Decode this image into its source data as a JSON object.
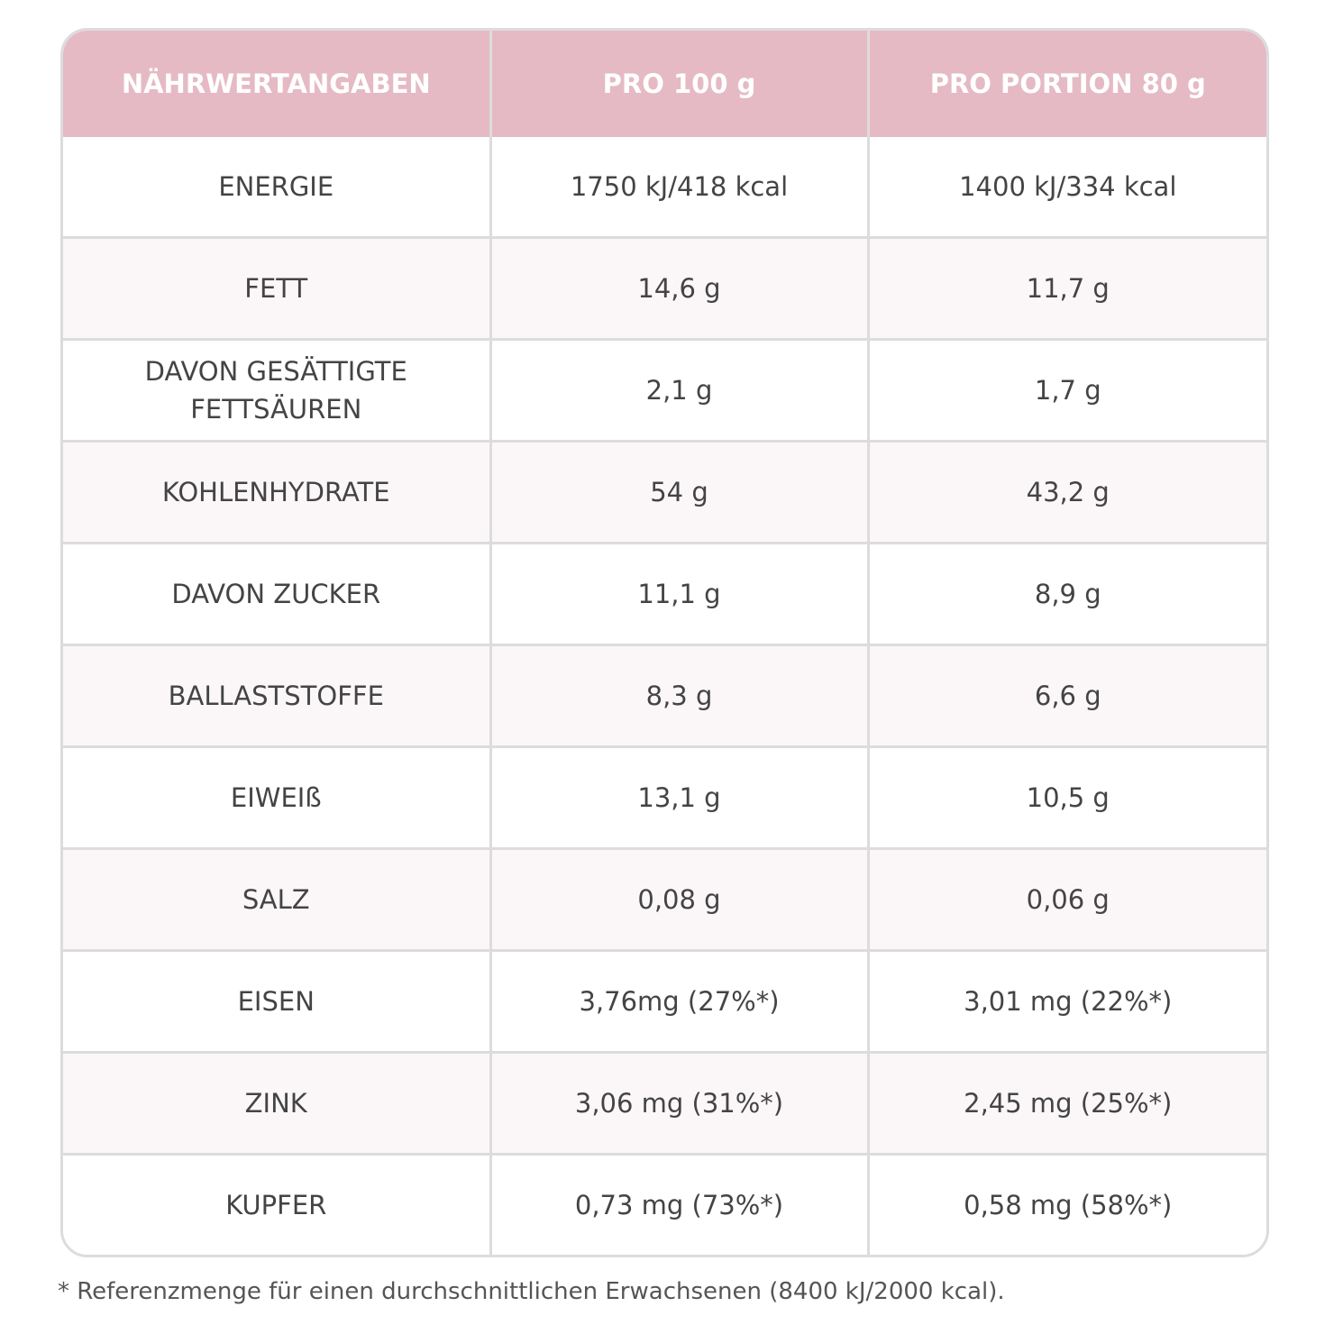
{
  "table": {
    "header": [
      "NÄHRWERTANGABEN",
      "PRO 100 g",
      "PRO PORTION 80 g"
    ],
    "rows": [
      [
        "ENERGIE",
        "1750 kJ/418 kcal",
        "1400 kJ/334 kcal"
      ],
      [
        "FETT",
        "14,6 g",
        "11,7 g"
      ],
      [
        "DAVON GESÄTTIGTE FETTSÄUREN",
        "2,1 g",
        "1,7 g"
      ],
      [
        "KOHLENHYDRATE",
        "54 g",
        "43,2 g"
      ],
      [
        "DAVON ZUCKER",
        "11,1 g",
        "8,9 g"
      ],
      [
        "BALLASTSTOFFE",
        "8,3 g",
        "6,6 g"
      ],
      [
        "EIWEIß",
        "13,1 g",
        "10,5 g"
      ],
      [
        "SALZ",
        "0,08 g",
        "0,06 g"
      ],
      [
        "EISEN",
        "3,76mg (27%*)",
        "3,01 mg (22%*)"
      ],
      [
        "ZINK",
        "3,06 mg (31%*)",
        "2,45 mg (25%*)"
      ],
      [
        "KUPFER",
        "0,73 mg (73%*)",
        "0,58 mg (58%*)"
      ]
    ]
  },
  "footnote": "* Referenzmenge für einen durchschnittlichen Erwachsenen (8400 kJ/2000 kcal)."
}
